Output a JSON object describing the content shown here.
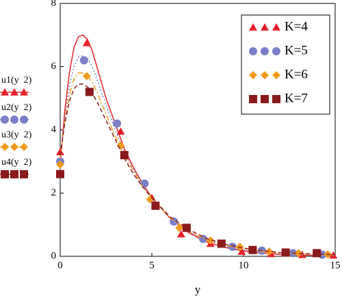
{
  "chart_data": {
    "type": "line",
    "x_label": "y",
    "xlim": [
      0,
      15
    ],
    "xticks": [
      0,
      5,
      10,
      15
    ],
    "ylim": [
      0,
      8
    ],
    "yticks": [
      0,
      2,
      4,
      6,
      8
    ],
    "x": [
      0,
      0.25,
      0.5,
      0.75,
      1,
      1.25,
      1.5,
      1.75,
      2,
      2.5,
      3,
      3.5,
      4,
      4.5,
      5,
      6,
      7,
      8,
      9,
      10,
      11,
      12,
      13,
      14,
      15
    ],
    "legend": "upper right",
    "series": [
      {
        "name": "K=4",
        "expr": "u1(y  2)",
        "color": "#e8202a",
        "dash": "none",
        "marker": "triangle",
        "values": [
          2.9,
          4.6,
          5.8,
          6.6,
          6.95,
          7.0,
          6.85,
          6.5,
          6.0,
          5.0,
          4.2,
          3.4,
          2.8,
          2.3,
          1.85,
          1.2,
          0.75,
          0.45,
          0.28,
          0.17,
          0.1,
          0.06,
          0.04,
          0.03,
          0.02
        ],
        "marker_x": [
          0,
          1.45,
          3.3,
          5.0,
          6.6,
          8.2,
          9.9,
          11.5,
          13.2,
          14.9
        ],
        "marker_values": [
          3.3,
          6.75,
          3.95,
          1.85,
          0.7,
          0.4,
          0.15,
          0.08,
          0.05,
          0.03
        ]
      },
      {
        "name": "K=5",
        "expr": "u2(y  2)",
        "color": "#7b7fc8",
        "dash": "2 3",
        "marker": "circle",
        "values": [
          3.0,
          4.4,
          5.4,
          6.0,
          6.3,
          6.35,
          6.25,
          6.0,
          5.6,
          4.8,
          4.0,
          3.3,
          2.75,
          2.25,
          1.85,
          1.2,
          0.78,
          0.5,
          0.32,
          0.2,
          0.13,
          0.08,
          0.05,
          0.04,
          0.03
        ],
        "marker_x": [
          0,
          1.3,
          3.1,
          4.6,
          6.2,
          7.8,
          9.4,
          11.0,
          12.7,
          14.3
        ],
        "marker_values": [
          3.0,
          6.2,
          4.2,
          2.3,
          1.1,
          0.55,
          0.3,
          0.18,
          0.1,
          0.05
        ]
      },
      {
        "name": "K=6",
        "expr": "u3(y  2)",
        "color": "#f39a1e",
        "dash": "8 3 2 3",
        "marker": "diamond",
        "values": [
          3.1,
          4.3,
          5.1,
          5.6,
          5.8,
          5.8,
          5.7,
          5.5,
          5.2,
          4.5,
          3.8,
          3.2,
          2.7,
          2.2,
          1.85,
          1.22,
          0.8,
          0.52,
          0.35,
          0.23,
          0.15,
          0.1,
          0.07,
          0.05,
          0.04
        ],
        "marker_x": [
          0,
          1.45,
          3.3,
          4.9,
          6.5,
          8.2,
          9.8,
          11.4,
          13.0,
          14.6
        ],
        "marker_values": [
          2.9,
          5.7,
          3.5,
          1.8,
          0.9,
          0.5,
          0.3,
          0.15,
          0.1,
          0.06
        ]
      },
      {
        "name": "K=7",
        "expr": "u4(y  2)",
        "color": "#8b1a1a",
        "dash": "6 4",
        "marker": "square",
        "values": [
          3.2,
          4.2,
          4.9,
          5.3,
          5.45,
          5.45,
          5.35,
          5.15,
          4.9,
          4.3,
          3.7,
          3.1,
          2.6,
          2.2,
          1.85,
          1.25,
          0.85,
          0.56,
          0.38,
          0.26,
          0.18,
          0.12,
          0.09,
          0.07,
          0.05
        ],
        "marker_x": [
          0,
          1.6,
          3.5,
          5.2,
          6.9,
          8.8,
          10.5,
          12.3,
          14.0
        ],
        "marker_values": [
          2.6,
          5.2,
          3.2,
          1.6,
          0.9,
          0.4,
          0.2,
          0.12,
          0.1
        ]
      }
    ]
  }
}
